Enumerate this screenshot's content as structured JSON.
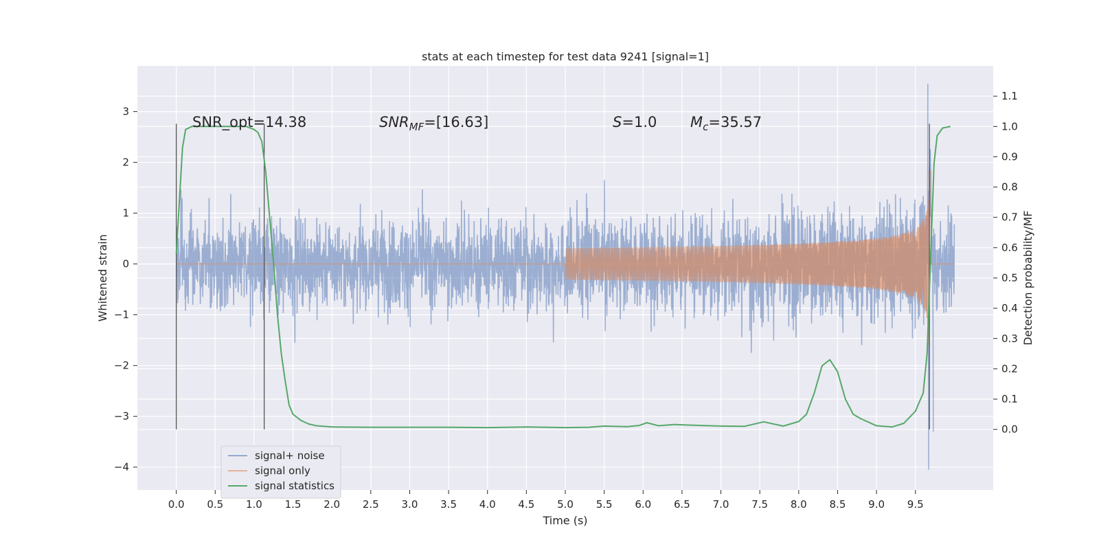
{
  "chart_data": {
    "type": "line",
    "title": "stats at each timestep for test data 9241 [signal=1]",
    "xlabel": "Time (s)",
    "ylabel_left": "Whitened strain",
    "ylabel_right": "Detection probability/MF",
    "xlim": [
      -0.5,
      10.5
    ],
    "ylim_left": [
      -4.45,
      3.9
    ],
    "ylim_right": [
      -0.2,
      1.2
    ],
    "x_ticks": [
      "0.0",
      "0.5",
      "1.0",
      "1.5",
      "2.0",
      "2.5",
      "3.0",
      "3.5",
      "4.0",
      "4.5",
      "5.0",
      "5.5",
      "6.0",
      "6.5",
      "7.0",
      "7.5",
      "8.0",
      "8.5",
      "9.0",
      "9.5"
    ],
    "y_left_ticks": [
      "3",
      "2",
      "1",
      "0",
      "−1",
      "−2",
      "−3",
      "−4"
    ],
    "y_right_ticks": [
      "1.1",
      "1.0",
      "0.9",
      "0.8",
      "0.7",
      "0.6",
      "0.5",
      "0.4",
      "0.3",
      "0.2",
      "0.1",
      "0.0"
    ],
    "grid": true,
    "legend_placement": "lower-left",
    "annotations": {
      "snr_opt": "SNR_opt=14.38",
      "snr_mf_main": "SNR",
      "snr_mf_sub": "MF",
      "snr_mf_value": "=[16.63]",
      "s_main": "S",
      "s_value": "=1.0",
      "mc_main": "M",
      "mc_sub": "c",
      "mc_value": "=35.57"
    },
    "vertical_markers": [
      0.0,
      1.13,
      9.68
    ],
    "series": [
      {
        "name": "signal+ noise",
        "axis": "left",
        "color": "#4c72b0",
        "x_range": [
          0.0,
          10.0
        ],
        "noise_band": [
          -1.3,
          1.3
        ],
        "noise_extreme": [
          -2.6,
          2.8
        ],
        "peak_extremes": [
          [
            9.66,
            3.55
          ],
          [
            9.67,
            -4.05
          ],
          [
            9.73,
            -3.3
          ]
        ]
      },
      {
        "name": "signal only",
        "axis": "left",
        "color": "#dd8452",
        "x_range": [
          0.0,
          10.0
        ],
        "chirp_start": 5.0,
        "chirp_peak": 9.68,
        "chirp_peak_amplitude": 2.95
      },
      {
        "name": "signal statistics",
        "axis": "right",
        "color": "#55a868",
        "x": [
          0.0,
          0.08,
          0.12,
          0.2,
          0.3,
          0.5,
          0.7,
          0.9,
          1.0,
          1.05,
          1.1,
          1.15,
          1.2,
          1.25,
          1.3,
          1.35,
          1.4,
          1.45,
          1.5,
          1.6,
          1.7,
          1.8,
          2.0,
          2.5,
          3.0,
          3.5,
          4.0,
          4.5,
          5.0,
          5.3,
          5.5,
          5.8,
          5.95,
          6.05,
          6.2,
          6.4,
          6.6,
          7.0,
          7.3,
          7.55,
          7.8,
          8.0,
          8.1,
          8.2,
          8.3,
          8.4,
          8.5,
          8.6,
          8.7,
          8.8,
          9.0,
          9.2,
          9.35,
          9.5,
          9.6,
          9.65,
          9.7,
          9.74,
          9.78,
          9.85,
          9.95
        ],
        "y": [
          0.58,
          0.93,
          0.99,
          1.0,
          1.0,
          1.0,
          1.0,
          1.0,
          0.99,
          0.98,
          0.95,
          0.85,
          0.7,
          0.55,
          0.38,
          0.25,
          0.16,
          0.08,
          0.05,
          0.03,
          0.018,
          0.012,
          0.008,
          0.007,
          0.007,
          0.007,
          0.006,
          0.008,
          0.006,
          0.007,
          0.011,
          0.009,
          0.013,
          0.022,
          0.012,
          0.016,
          0.014,
          0.011,
          0.01,
          0.025,
          0.011,
          0.026,
          0.05,
          0.12,
          0.21,
          0.23,
          0.19,
          0.1,
          0.05,
          0.035,
          0.012,
          0.008,
          0.02,
          0.06,
          0.12,
          0.25,
          0.6,
          0.88,
          0.97,
          0.995,
          1.0
        ]
      }
    ]
  }
}
